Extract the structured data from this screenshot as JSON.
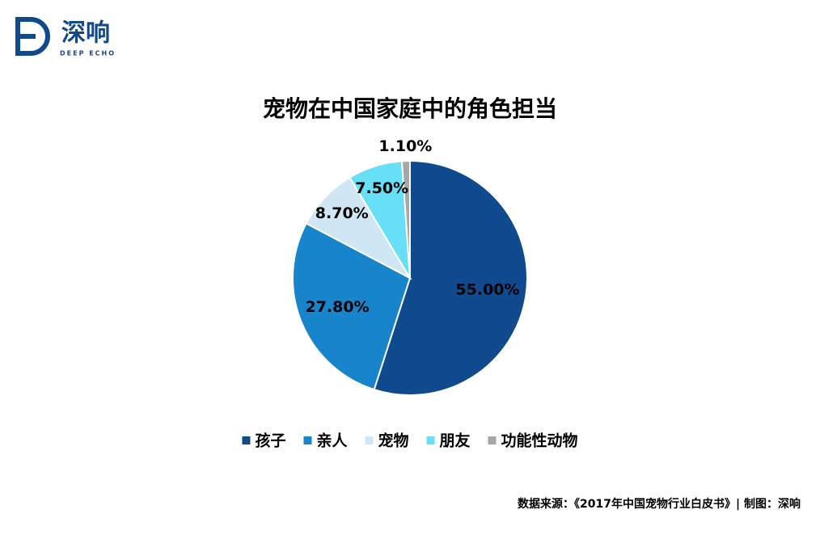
{
  "logo": {
    "name": "深响",
    "subname": "DEEP ECHO"
  },
  "chart_data": {
    "type": "pie",
    "title": "宠物在中国家庭中的角色担当",
    "categories": [
      "孩子",
      "亲人",
      "宠物",
      "朋友",
      "功能性动物"
    ],
    "values": [
      55,
      27.8,
      8.7,
      7.5,
      1.1
    ],
    "value_labels": [
      "55.00%",
      "27.80%",
      "8.70%",
      "7.50%",
      "1.10%"
    ],
    "colors": [
      "#0f4a8f",
      "#1784cc",
      "#cfe7f5",
      "#67dff7",
      "#a6a6a6"
    ],
    "legend": "bottom"
  },
  "source": "数据来源：《2017年中国宠物行业白皮书》| 制图：深响"
}
